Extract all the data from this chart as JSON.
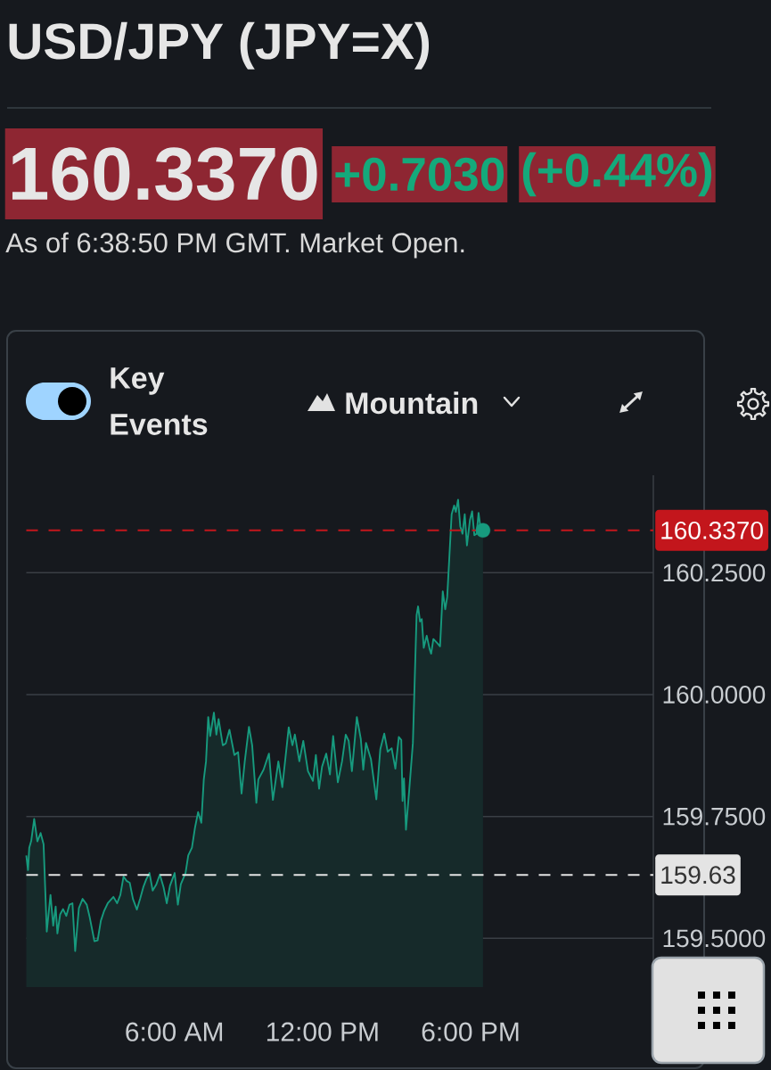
{
  "chart_data": {
    "type": "area",
    "title": "USD/JPY (JPY=X)",
    "subtitle": "As of 6:38:50 PM GMT. Market Open.",
    "annotations": [
      "160.3370",
      "+0.7030",
      "(+0.44%)",
      "Key Events",
      "Mountain"
    ],
    "xlim": [
      0,
      25.4
    ],
    "ylim": [
      159.4,
      160.45
    ],
    "xticks": [
      {
        "value": 6,
        "label": "6:00 AM"
      },
      {
        "value": 12,
        "label": "12:00 PM"
      },
      {
        "value": 18,
        "label": "6:00 PM"
      }
    ],
    "yticks": [
      {
        "value": 159.5,
        "label": "159.5000"
      },
      {
        "value": 159.75,
        "label": "159.7500"
      },
      {
        "value": 160.0,
        "label": "160.0000"
      },
      {
        "value": 160.25,
        "label": "160.2500"
      }
    ],
    "grid": "y",
    "series": [
      {
        "color": "#179a7e",
        "x": [
          0.0,
          0.07,
          0.12,
          0.2,
          0.32,
          0.45,
          0.58,
          0.7,
          0.83,
          0.98,
          1.09,
          1.19,
          1.26,
          1.37,
          1.49,
          1.62,
          1.75,
          1.87,
          1.98,
          2.13,
          2.28,
          2.45,
          2.57,
          2.76,
          2.89,
          3.02,
          3.15,
          3.3,
          3.53,
          3.68,
          3.81,
          3.94,
          4.06,
          4.19,
          4.32,
          4.48,
          4.61,
          4.74,
          4.86,
          4.99,
          5.12,
          5.27,
          5.41,
          5.56,
          5.69,
          5.82,
          6.01,
          6.14,
          6.26,
          6.45,
          6.56,
          6.71,
          6.83,
          6.96,
          7.09,
          7.19,
          7.28,
          7.37,
          7.45,
          7.6,
          7.7,
          7.79,
          7.96,
          8.08,
          8.23,
          8.43,
          8.58,
          8.72,
          8.85,
          9.02,
          9.15,
          9.32,
          9.4,
          9.61,
          9.83,
          9.99,
          10.21,
          10.37,
          10.63,
          10.78,
          10.88,
          11.06,
          11.22,
          11.41,
          11.61,
          11.73,
          11.86,
          11.98,
          12.15,
          12.3,
          12.43,
          12.62,
          12.79,
          12.94,
          13.06,
          13.19,
          13.39,
          13.55,
          13.65,
          13.76,
          13.96,
          14.18,
          14.34,
          14.5,
          14.64,
          14.8,
          14.95,
          15.09,
          15.19,
          15.24,
          15.3,
          15.38,
          15.51,
          15.66,
          15.81,
          15.87,
          15.95,
          16.02,
          16.1,
          16.22,
          16.34,
          16.4,
          16.49,
          16.66,
          16.76,
          16.87,
          16.97,
          17.05,
          17.14,
          17.23,
          17.33,
          17.4,
          17.49,
          17.58,
          17.67,
          17.76,
          17.85,
          17.97,
          18.06,
          18.15,
          18.24,
          18.32,
          18.42,
          18.5
        ],
        "values": [
          159.67,
          159.64,
          159.686,
          159.7,
          159.745,
          159.699,
          159.716,
          159.693,
          159.514,
          159.589,
          159.526,
          159.565,
          159.51,
          159.549,
          159.56,
          159.546,
          159.569,
          159.572,
          159.474,
          159.562,
          159.581,
          159.569,
          159.543,
          159.494,
          159.496,
          159.536,
          159.556,
          159.572,
          159.585,
          159.572,
          159.589,
          159.627,
          159.618,
          159.614,
          159.581,
          159.559,
          159.581,
          159.605,
          159.621,
          159.634,
          159.598,
          159.611,
          159.631,
          159.605,
          159.572,
          159.608,
          159.634,
          159.569,
          159.611,
          159.634,
          159.67,
          159.686,
          159.726,
          159.759,
          159.737,
          159.826,
          159.863,
          159.954,
          159.915,
          159.963,
          159.918,
          159.95,
          159.896,
          159.9,
          159.928,
          159.876,
          159.882,
          159.797,
          159.863,
          159.934,
          159.896,
          159.778,
          159.826,
          159.846,
          159.879,
          159.784,
          159.863,
          159.81,
          159.933,
          159.896,
          159.918,
          159.863,
          159.905,
          159.843,
          159.823,
          159.876,
          159.807,
          159.852,
          159.879,
          159.836,
          159.915,
          159.82,
          159.863,
          159.918,
          159.905,
          159.843,
          159.954,
          159.909,
          159.846,
          159.901,
          159.868,
          159.785,
          159.888,
          159.92,
          159.883,
          159.89,
          159.848,
          159.913,
          159.907,
          159.782,
          159.828,
          159.723,
          159.803,
          159.901,
          160.163,
          160.181,
          160.15,
          160.155,
          160.096,
          160.121,
          160.093,
          160.084,
          160.114,
          160.105,
          160.099,
          160.212,
          160.175,
          160.2,
          160.285,
          160.37,
          160.388,
          160.375,
          160.4,
          160.345,
          160.33,
          160.37,
          160.306,
          160.358,
          160.376,
          160.327,
          160.33,
          160.373,
          160.333,
          160.337
        ]
      },
      {
        "type": "scatter",
        "color": "#179a7e",
        "x": [
          18.5
        ],
        "values": [
          160.337
        ]
      }
    ],
    "ref_lines": [
      {
        "axis": "y",
        "value": 160.337,
        "label": "160.3370",
        "color": "#c3161c",
        "line_style": "dashed"
      },
      {
        "axis": "y",
        "value": 159.63,
        "label": "159.63",
        "color": "#e4e4e4",
        "line_style": "dashed"
      }
    ]
  }
}
